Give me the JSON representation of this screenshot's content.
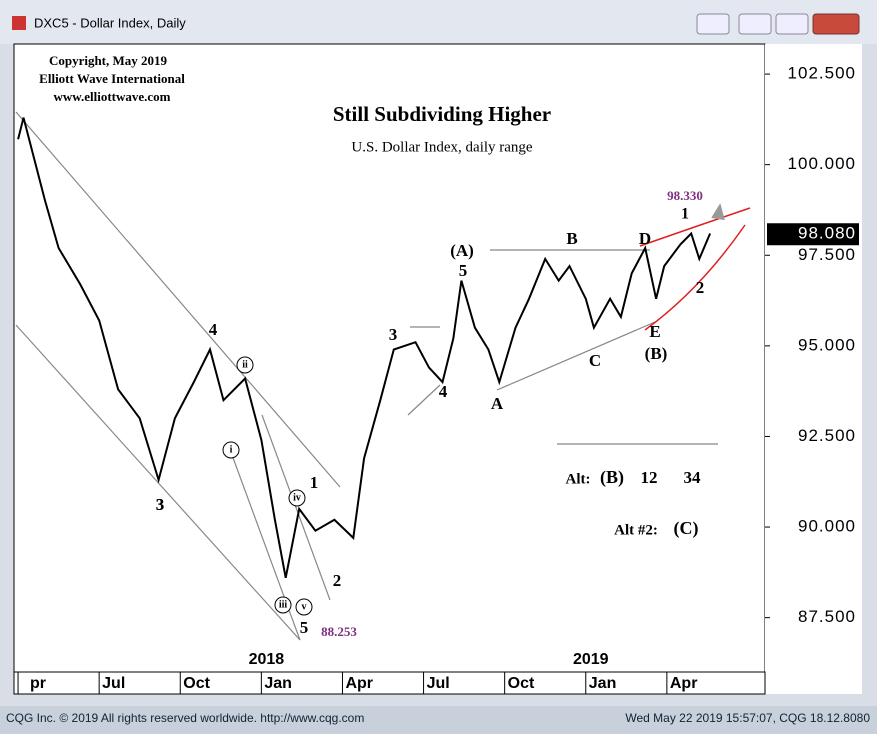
{
  "window_title": "DXC5 - Dollar Index, Daily",
  "footer": {
    "left": "CQG Inc. © 2019 All rights reserved worldwide. http://www.cqg.com",
    "right": "Wed May 22 2019 15:57:07, CQG 18.12.8080"
  },
  "chart_data": {
    "type": "line",
    "title": "Still Subdividing Higher",
    "subtitle": "U.S. Dollar Index, daily range",
    "annotations": [
      "Copyright, May 2019",
      "Elliott Wave International",
      "www.elliottwave.com",
      "98.330",
      "1",
      "(A)",
      "5",
      "B",
      "D",
      "E",
      "(B)",
      "C",
      "A",
      "3",
      "4",
      "2",
      "4",
      "3",
      "ii",
      "i",
      "iv",
      "iii",
      "v",
      "1",
      "2",
      "5",
      "88.253",
      "3",
      "Alt:",
      "(B)",
      "12",
      "34",
      "Alt #2:",
      "(C)"
    ],
    "last_price": {
      "value": 98.08,
      "label": "98.080"
    },
    "years": [
      {
        "value": 9,
        "label": "2018"
      },
      {
        "value": 21,
        "label": "2019"
      }
    ],
    "color": "#000000",
    "x": [
      0,
      0.2,
      1.0,
      1.5,
      2.3,
      3.0,
      3.7,
      4.5,
      5.2,
      5.8,
      6.5,
      7.1,
      7.6,
      8.4,
      9.0,
      9.5,
      9.9,
      10.4,
      11.0,
      11.7,
      12.4,
      12.8,
      13.4,
      13.9,
      14.7,
      15.2,
      15.7,
      16.1,
      16.4,
      16.9,
      17.4,
      17.8,
      18.4,
      18.9,
      19.5,
      20.0,
      20.4,
      21.0,
      21.3,
      21.9,
      22.3,
      22.7,
      23.2,
      23.6,
      23.9,
      24.5,
      24.9,
      25.2,
      25.6
    ],
    "values": [
      100.7,
      101.3,
      99.0,
      97.7,
      96.7,
      95.7,
      93.8,
      93.0,
      91.3,
      93.0,
      94.0,
      94.9,
      93.5,
      94.1,
      92.4,
      90.2,
      88.6,
      90.5,
      89.9,
      90.2,
      89.7,
      91.9,
      93.5,
      94.9,
      95.1,
      94.4,
      94.0,
      95.2,
      96.8,
      95.5,
      94.9,
      94.0,
      95.5,
      96.3,
      97.4,
      96.8,
      97.2,
      96.3,
      95.5,
      96.3,
      95.8,
      97.0,
      97.7,
      96.3,
      97.2,
      97.8,
      98.1,
      97.4,
      98.1
    ],
    "xlim": [
      -0.15,
      27.63
    ],
    "ylim": [
      86,
      103.33
    ],
    "xticks": [
      {
        "value": 0,
        "label": "pr"
      },
      {
        "value": 3,
        "label": "Jul"
      },
      {
        "value": 6,
        "label": "Oct"
      },
      {
        "value": 9,
        "label": "Jan"
      },
      {
        "value": 12,
        "label": "Apr"
      },
      {
        "value": 15,
        "label": "Jul"
      },
      {
        "value": 18,
        "label": "Oct"
      },
      {
        "value": 21,
        "label": "Jan"
      },
      {
        "value": 24,
        "label": "Apr"
      }
    ],
    "yticks": [
      {
        "value": 87.5,
        "label": "87.500"
      },
      {
        "value": 90,
        "label": "90.000"
      },
      {
        "value": 92.5,
        "label": "92.500"
      },
      {
        "value": 95,
        "label": "95.000"
      },
      {
        "value": 97.5,
        "label": "97.500"
      },
      {
        "value": 100,
        "label": "100.000"
      },
      {
        "value": 102.5,
        "label": "102.500"
      }
    ]
  }
}
